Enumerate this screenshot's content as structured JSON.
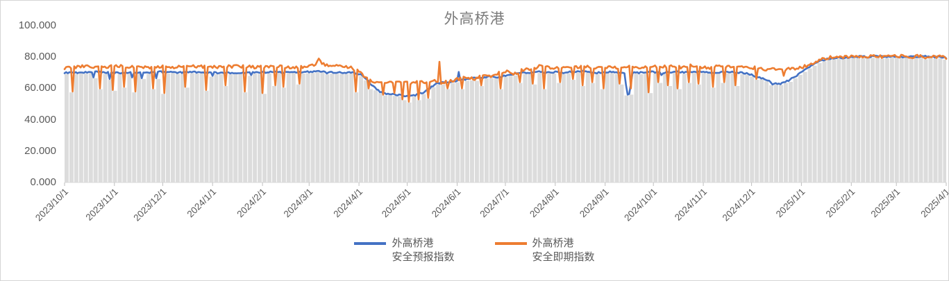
{
  "title": "外高桥港",
  "legend": {
    "items": [
      {
        "line1": "外高桥港",
        "line2": "安全预报指数",
        "color": "#4472C4"
      },
      {
        "line1": "外高桥港",
        "line2": "安全即期指数",
        "color": "#ED7D31"
      }
    ]
  },
  "colors": {
    "forecast_line": "#4472C4",
    "spot_line": "#ED7D31",
    "background_bars": "#DCDCDC",
    "axis_line": "#D9D9D9",
    "tick_mark": "#BFBFBF",
    "axis_text": "#595959",
    "title_text": "#7B7B7B"
  },
  "chart_data": {
    "type": "line",
    "title": "外高桥港",
    "xlabel": "",
    "ylabel": "",
    "ylim": [
      0,
      100
    ],
    "grid": false,
    "legend_position": "bottom",
    "x_start_date": "2023/10/1",
    "x_end_date": "2025/4/1",
    "x_days_total": 549,
    "y_tick_labels": [
      "100.000",
      "80.000",
      "60.000",
      "40.000",
      "20.000",
      "0.000"
    ],
    "x_tick_labels": [
      "2023/10/1",
      "2023/11/1",
      "2023/12/1",
      "2024/1/1",
      "2024/2/1",
      "2024/3/1",
      "2024/4/1",
      "2024/5/1",
      "2024/6/1",
      "2024/7/1",
      "2024/8/1",
      "2024/9/1",
      "2024/10/1",
      "2024/11/1",
      "2024/12/1",
      "2025/1/1",
      "2025/2/1",
      "2025/3/1",
      "2025/4/1"
    ],
    "x_tick_day_offsets": [
      0,
      31,
      61,
      92,
      123,
      152,
      183,
      213,
      244,
      274,
      305,
      336,
      366,
      397,
      427,
      458,
      489,
      517,
      548
    ],
    "background_bars": {
      "color": "#DCDCDC",
      "every_days": 3,
      "top_rule": "min_of_both_series"
    },
    "noise_seed": 9,
    "series": [
      {
        "name": "外高桥港安全预报指数",
        "color": "#4472C4",
        "noise_amp": 0.5,
        "base_anchors": [
          [
            0,
            70
          ],
          [
            10,
            70
          ],
          [
            20,
            70.5
          ],
          [
            30,
            70
          ],
          [
            40,
            70
          ],
          [
            50,
            70
          ],
          [
            60,
            70.5
          ],
          [
            70,
            70
          ],
          [
            80,
            70.5
          ],
          [
            90,
            70
          ],
          [
            100,
            70
          ],
          [
            110,
            70
          ],
          [
            120,
            70
          ],
          [
            130,
            70.5
          ],
          [
            140,
            70
          ],
          [
            150,
            70.5
          ],
          [
            158,
            71
          ],
          [
            165,
            70.5
          ],
          [
            172,
            70
          ],
          [
            180,
            70
          ],
          [
            184,
            69
          ],
          [
            188,
            65.5
          ],
          [
            192,
            61
          ],
          [
            196,
            58
          ],
          [
            200,
            56.5
          ],
          [
            205,
            56
          ],
          [
            210,
            55.5
          ],
          [
            215,
            55
          ],
          [
            219,
            56
          ],
          [
            223,
            57.5
          ],
          [
            227,
            60
          ],
          [
            231,
            63
          ],
          [
            235,
            64
          ],
          [
            239,
            63.5
          ],
          [
            244,
            65
          ],
          [
            250,
            66
          ],
          [
            255,
            66.5
          ],
          [
            260,
            67
          ],
          [
            265,
            67.5
          ],
          [
            270,
            67
          ],
          [
            275,
            68.5
          ],
          [
            280,
            69.5
          ],
          [
            285,
            70
          ],
          [
            290,
            70
          ],
          [
            295,
            70.5
          ],
          [
            300,
            70
          ],
          [
            305,
            70.5
          ],
          [
            310,
            70
          ],
          [
            315,
            70.5
          ],
          [
            320,
            71
          ],
          [
            325,
            70.5
          ],
          [
            330,
            70
          ],
          [
            335,
            70
          ],
          [
            340,
            70.5
          ],
          [
            345,
            70
          ],
          [
            358,
            70
          ],
          [
            365,
            70.5
          ],
          [
            372,
            70
          ],
          [
            380,
            70.5
          ],
          [
            388,
            70
          ],
          [
            396,
            70.5
          ],
          [
            404,
            70
          ],
          [
            412,
            70.5
          ],
          [
            420,
            70
          ],
          [
            425,
            69.5
          ],
          [
            430,
            67.5
          ],
          [
            435,
            66
          ],
          [
            440,
            63.5
          ],
          [
            445,
            63
          ],
          [
            450,
            65
          ],
          [
            455,
            68
          ],
          [
            460,
            72
          ],
          [
            465,
            75
          ],
          [
            470,
            77.5
          ],
          [
            475,
            79
          ],
          [
            480,
            79.5
          ],
          [
            485,
            79.5
          ],
          [
            490,
            80
          ],
          [
            495,
            80.5
          ],
          [
            500,
            80
          ],
          [
            505,
            80.5
          ],
          [
            510,
            80
          ],
          [
            515,
            80.5
          ],
          [
            520,
            80
          ],
          [
            525,
            80.5
          ],
          [
            530,
            80
          ],
          [
            535,
            80.5
          ],
          [
            540,
            80
          ],
          [
            545,
            80
          ],
          [
            548,
            79.5
          ]
        ],
        "spikes": [
          [
            18,
            67
          ],
          [
            28,
            66
          ],
          [
            42,
            67
          ],
          [
            48,
            66.5
          ],
          [
            57,
            66.5
          ],
          [
            92,
            68
          ],
          [
            116,
            68.5
          ],
          [
            163,
            69.5
          ],
          [
            245,
            70.5
          ],
          [
            349,
            62
          ],
          [
            350,
            56
          ],
          [
            351,
            56.5
          ],
          [
            352,
            63
          ],
          [
            371,
            68.5
          ],
          [
            440,
            62.5
          ]
        ]
      },
      {
        "name": "外高桥港安全即期指数",
        "color": "#ED7D31",
        "noise_amp": 1.0,
        "base_anchors": [
          [
            0,
            73
          ],
          [
            10,
            74
          ],
          [
            20,
            73.5
          ],
          [
            30,
            74
          ],
          [
            40,
            74
          ],
          [
            50,
            73.5
          ],
          [
            60,
            74
          ],
          [
            70,
            73.5
          ],
          [
            80,
            74
          ],
          [
            90,
            73.5
          ],
          [
            100,
            74
          ],
          [
            110,
            74
          ],
          [
            120,
            73.5
          ],
          [
            130,
            74
          ],
          [
            140,
            73.5
          ],
          [
            150,
            74
          ],
          [
            156,
            75
          ],
          [
            158,
            78.5
          ],
          [
            162,
            74.5
          ],
          [
            170,
            74
          ],
          [
            177,
            73.5
          ],
          [
            183,
            71
          ],
          [
            186,
            68
          ],
          [
            190,
            65
          ],
          [
            195,
            63.5
          ],
          [
            200,
            64.5
          ],
          [
            205,
            63
          ],
          [
            210,
            65
          ],
          [
            215,
            63
          ],
          [
            220,
            64
          ],
          [
            225,
            63.5
          ],
          [
            230,
            65
          ],
          [
            235,
            63.5
          ],
          [
            240,
            65
          ],
          [
            245,
            66
          ],
          [
            250,
            67
          ],
          [
            255,
            66
          ],
          [
            260,
            68.5
          ],
          [
            265,
            67
          ],
          [
            270,
            70
          ],
          [
            275,
            70.5
          ],
          [
            280,
            69.5
          ],
          [
            285,
            72
          ],
          [
            290,
            72.5
          ],
          [
            295,
            74
          ],
          [
            300,
            73.5
          ],
          [
            305,
            73
          ],
          [
            310,
            73.5
          ],
          [
            315,
            73
          ],
          [
            320,
            74
          ],
          [
            325,
            74
          ],
          [
            330,
            73.5
          ],
          [
            335,
            74
          ],
          [
            340,
            73.5
          ],
          [
            345,
            73.5
          ],
          [
            350,
            74
          ],
          [
            355,
            73.5
          ],
          [
            360,
            73.5
          ],
          [
            365,
            74
          ],
          [
            370,
            73.5
          ],
          [
            375,
            74
          ],
          [
            380,
            73.5
          ],
          [
            385,
            73.5
          ],
          [
            390,
            74.5
          ],
          [
            395,
            73.5
          ],
          [
            400,
            73
          ],
          [
            405,
            74
          ],
          [
            410,
            73.5
          ],
          [
            415,
            73.5
          ],
          [
            420,
            74
          ],
          [
            425,
            73.5
          ],
          [
            430,
            73
          ],
          [
            435,
            72
          ],
          [
            440,
            72
          ],
          [
            445,
            72
          ],
          [
            450,
            72.5
          ],
          [
            455,
            73
          ],
          [
            460,
            74
          ],
          [
            465,
            76
          ],
          [
            470,
            78.5
          ],
          [
            475,
            79.5
          ],
          [
            480,
            80.5
          ],
          [
            485,
            80
          ],
          [
            490,
            80.5
          ],
          [
            495,
            80
          ],
          [
            500,
            80.5
          ],
          [
            505,
            80.5
          ],
          [
            510,
            80
          ],
          [
            515,
            80.5
          ],
          [
            520,
            80.5
          ],
          [
            525,
            80
          ],
          [
            530,
            80.5
          ],
          [
            535,
            80
          ],
          [
            540,
            80.5
          ],
          [
            545,
            80
          ],
          [
            548,
            79.5
          ]
        ],
        "spikes": [
          [
            5,
            58
          ],
          [
            22,
            60
          ],
          [
            30,
            59
          ],
          [
            37,
            61
          ],
          [
            44,
            58
          ],
          [
            55,
            60
          ],
          [
            62,
            57
          ],
          [
            75,
            61
          ],
          [
            88,
            59
          ],
          [
            100,
            62
          ],
          [
            112,
            58
          ],
          [
            123,
            57
          ],
          [
            131,
            62
          ],
          [
            136,
            61
          ],
          [
            146,
            63
          ],
          [
            181,
            58
          ],
          [
            189,
            60
          ],
          [
            198,
            56
          ],
          [
            205,
            57
          ],
          [
            210,
            53
          ],
          [
            214,
            51.5
          ],
          [
            220,
            53
          ],
          [
            226,
            54
          ],
          [
            233,
            77
          ],
          [
            238,
            60
          ],
          [
            247,
            60
          ],
          [
            259,
            62
          ],
          [
            271,
            60
          ],
          [
            283,
            64
          ],
          [
            291,
            63
          ],
          [
            298,
            60
          ],
          [
            308,
            64
          ],
          [
            316,
            66
          ],
          [
            322,
            62
          ],
          [
            328,
            64
          ],
          [
            335,
            60
          ],
          [
            345,
            63
          ],
          [
            352,
            60
          ],
          [
            363,
            57.5
          ],
          [
            369,
            64
          ],
          [
            375,
            62
          ],
          [
            381,
            60
          ],
          [
            388,
            64
          ],
          [
            394,
            63
          ],
          [
            403,
            61
          ],
          [
            410,
            64
          ],
          [
            417,
            62
          ],
          [
            430,
            66
          ],
          [
            447,
            68
          ]
        ]
      }
    ]
  }
}
